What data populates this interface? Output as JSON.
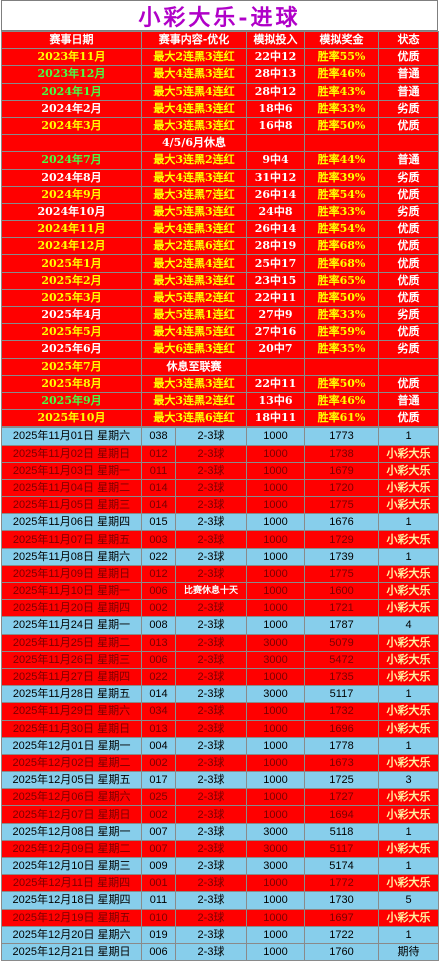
{
  "title": "小彩大乐-进球",
  "header": [
    "赛事日期",
    "赛事内容-优化",
    "模拟投入",
    "模拟奖金",
    "状态"
  ],
  "summary_rows": [
    {
      "date": "2023年11月",
      "content": "最大2连黑3连红",
      "invest": "22中12",
      "prize": "胜率55%",
      "status": "优质",
      "date_color": "yellow"
    },
    {
      "date": "2023年12月",
      "content": "最大4连黑3连红",
      "invest": "28中13",
      "prize": "胜率46%",
      "status": "普通",
      "date_color": "green"
    },
    {
      "date": "2024年1月",
      "content": "最大5连黑4连红",
      "invest": "28中12",
      "prize": "胜率43%",
      "status": "普通",
      "date_color": "green"
    },
    {
      "date": "2024年2月",
      "content": "最大4连黑3连红",
      "invest": "18中6",
      "prize": "胜率33%",
      "status": "劣质",
      "date_color": "white"
    },
    {
      "date": "2024年3月",
      "content": "最大3连黑3连红",
      "invest": "16中8",
      "prize": "胜率50%",
      "status": "优质",
      "date_color": "yellow"
    },
    {
      "date": "",
      "content": "4/5/6月休息",
      "invest": "",
      "prize": "",
      "status": "",
      "date_color": "yellow",
      "note": true
    },
    {
      "date": "2024年7月",
      "content": "最大3连黑2连红",
      "invest": "9中4",
      "prize": "胜率44%",
      "status": "普通",
      "date_color": "green"
    },
    {
      "date": "2024年8月",
      "content": "最大4连黑3连红",
      "invest": "31中12",
      "prize": "胜率39%",
      "status": "劣质",
      "date_color": "white"
    },
    {
      "date": "2024年9月",
      "content": "最大3连黑7连红",
      "invest": "26中14",
      "prize": "胜率54%",
      "status": "优质",
      "date_color": "yellow"
    },
    {
      "date": "2024年10月",
      "content": "最大5连黑3连红",
      "invest": "24中8",
      "prize": "胜率33%",
      "status": "劣质",
      "date_color": "white"
    },
    {
      "date": "2024年11月",
      "content": "最大4连黑3连红",
      "invest": "26中14",
      "prize": "胜率54%",
      "status": "优质",
      "date_color": "yellow"
    },
    {
      "date": "2024年12月",
      "content": "最大2连黑6连红",
      "invest": "28中19",
      "prize": "胜率68%",
      "status": "优质",
      "date_color": "yellow"
    },
    {
      "date": "2025年1月",
      "content": "最大2连黑4连红",
      "invest": "25中17",
      "prize": "胜率68%",
      "status": "优质",
      "date_color": "yellow"
    },
    {
      "date": "2025年2月",
      "content": "最大3连黑3连红",
      "invest": "23中15",
      "prize": "胜率65%",
      "status": "优质",
      "date_color": "yellow"
    },
    {
      "date": "2025年3月",
      "content": "最大5连黑2连红",
      "invest": "22中11",
      "prize": "胜率50%",
      "status": "优质",
      "date_color": "yellow"
    },
    {
      "date": "2025年4月",
      "content": "最大5连黑1连红",
      "invest": "27中9",
      "prize": "胜率33%",
      "status": "劣质",
      "date_color": "white"
    },
    {
      "date": "2025年5月",
      "content": "最大4连黑5连红",
      "invest": "27中16",
      "prize": "胜率59%",
      "status": "优质",
      "date_color": "yellow"
    },
    {
      "date": "2025年6月",
      "content": "最大6连黑3连红",
      "invest": "20中7",
      "prize": "胜率35%",
      "status": "劣质",
      "date_color": "white"
    },
    {
      "date": "2025年7月",
      "content": "休息至联赛",
      "invest": "",
      "prize": "",
      "status": "",
      "date_color": "yellow",
      "note": true
    },
    {
      "date": "2025年8月",
      "content": "最大3连黑3连红",
      "invest": "22中11",
      "prize": "胜率50%",
      "status": "优质",
      "date_color": "yellow"
    },
    {
      "date": "2025年9月",
      "content": "最大3连黑2连红",
      "invest": "13中6",
      "prize": "胜率46%",
      "status": "普通",
      "date_color": "green"
    },
    {
      "date": "2025年10月",
      "content": "最大3连黑6连红",
      "invest": "18中11",
      "prize": "胜率61%",
      "status": "优质",
      "date_color": "yellow"
    }
  ],
  "daily_rows": [
    {
      "date": "2025年11月01日 星期六",
      "num": "038",
      "play": "2-3球",
      "invest": "1000",
      "prize": "1773",
      "status": "1",
      "color": "blue"
    },
    {
      "date": "2025年11月02日 星期日",
      "num": "012",
      "play": "2-3球",
      "invest": "1000",
      "prize": "1738",
      "status": "小彩大乐",
      "color": "red"
    },
    {
      "date": "2025年11月03日 星期一",
      "num": "011",
      "play": "2-3球",
      "invest": "1000",
      "prize": "1679",
      "status": "小彩大乐",
      "color": "red"
    },
    {
      "date": "2025年11月04日 星期二",
      "num": "014",
      "play": "2-3球",
      "invest": "1000",
      "prize": "1720",
      "status": "小彩大乐",
      "color": "red"
    },
    {
      "date": "2025年11月05日 星期三",
      "num": "014",
      "play": "2-3球",
      "invest": "1000",
      "prize": "1775",
      "status": "小彩大乐",
      "color": "red"
    },
    {
      "date": "2025年11月06日 星期四",
      "num": "015",
      "play": "2-3球",
      "invest": "1000",
      "prize": "1676",
      "status": "1",
      "color": "blue"
    },
    {
      "date": "2025年11月07日 星期五",
      "num": "003",
      "play": "2-3球",
      "invest": "1000",
      "prize": "1729",
      "status": "小彩大乐",
      "color": "red"
    },
    {
      "date": "2025年11月08日 星期六",
      "num": "022",
      "play": "2-3球",
      "invest": "1000",
      "prize": "1739",
      "status": "1",
      "color": "blue"
    },
    {
      "date": "2025年11月09日 星期日",
      "num": "012",
      "play": "2-3球",
      "invest": "1000",
      "prize": "1775",
      "status": "小彩大乐",
      "color": "red"
    },
    {
      "date": "2025年11月10日 星期一",
      "num": "006",
      "play": "2-3球",
      "invest": "1000",
      "prize": "1600",
      "status": "小彩大乐",
      "color": "red",
      "memo": "比赛休息十天"
    },
    {
      "date": "2025年11月20日 星期四",
      "num": "002",
      "play": "2-3球",
      "invest": "1000",
      "prize": "1721",
      "status": "小彩大乐",
      "color": "red"
    },
    {
      "date": "2025年11月24日 星期一",
      "num": "008",
      "play": "2-3球",
      "invest": "1000",
      "prize": "1787",
      "status": "4",
      "color": "blue"
    },
    {
      "date": "2025年11月25日 星期二",
      "num": "013",
      "play": "2-3球",
      "invest": "3000",
      "prize": "5079",
      "status": "小彩大乐",
      "color": "red"
    },
    {
      "date": "2025年11月26日 星期三",
      "num": "006",
      "play": "2-3球",
      "invest": "3000",
      "prize": "5472",
      "status": "小彩大乐",
      "color": "red"
    },
    {
      "date": "2025年11月27日 星期四",
      "num": "022",
      "play": "2-3球",
      "invest": "1000",
      "prize": "1735",
      "status": "小彩大乐",
      "color": "red"
    },
    {
      "date": "2025年11月28日 星期五",
      "num": "014",
      "play": "2-3球",
      "invest": "3000",
      "prize": "5117",
      "status": "1",
      "color": "blue"
    },
    {
      "date": "2025年11月29日 星期六",
      "num": "034",
      "play": "2-3球",
      "invest": "1000",
      "prize": "1732",
      "status": "小彩大乐",
      "color": "red"
    },
    {
      "date": "2025年11月30日 星期日",
      "num": "013",
      "play": "2-3球",
      "invest": "1000",
      "prize": "1696",
      "status": "小彩大乐",
      "color": "red"
    },
    {
      "date": "2025年12月01日 星期一",
      "num": "004",
      "play": "2-3球",
      "invest": "1000",
      "prize": "1778",
      "status": "1",
      "color": "blue"
    },
    {
      "date": "2025年12月02日 星期二",
      "num": "002",
      "play": "2-3球",
      "invest": "1000",
      "prize": "1673",
      "status": "小彩大乐",
      "color": "red"
    },
    {
      "date": "2025年12月05日 星期五",
      "num": "017",
      "play": "2-3球",
      "invest": "1000",
      "prize": "1725",
      "status": "3",
      "color": "blue"
    },
    {
      "date": "2025年12月06日 星期六",
      "num": "025",
      "play": "2-3球",
      "invest": "1000",
      "prize": "1727",
      "status": "小彩大乐",
      "color": "red"
    },
    {
      "date": "2025年12月07日 星期日",
      "num": "002",
      "play": "2-3球",
      "invest": "1000",
      "prize": "1694",
      "status": "小彩大乐",
      "color": "red"
    },
    {
      "date": "2025年12月08日 星期一",
      "num": "007",
      "play": "2-3球",
      "invest": "3000",
      "prize": "5118",
      "status": "1",
      "color": "blue"
    },
    {
      "date": "2025年12月09日 星期二",
      "num": "007",
      "play": "2-3球",
      "invest": "3000",
      "prize": "5117",
      "status": "小彩大乐",
      "color": "red"
    },
    {
      "date": "2025年12月10日 星期三",
      "num": "009",
      "play": "2-3球",
      "invest": "3000",
      "prize": "5174",
      "status": "1",
      "color": "blue"
    },
    {
      "date": "2025年12月11日 星期四",
      "num": "001",
      "play": "2-3球",
      "invest": "1000",
      "prize": "1772",
      "status": "小彩大乐",
      "color": "red"
    },
    {
      "date": "2025年12月18日 星期四",
      "num": "011",
      "play": "2-3球",
      "invest": "1000",
      "prize": "1730",
      "status": "5",
      "color": "blue"
    },
    {
      "date": "2025年12月19日 星期五",
      "num": "010",
      "play": "2-3球",
      "invest": "1000",
      "prize": "1697",
      "status": "小彩大乐",
      "color": "red"
    },
    {
      "date": "2025年12月20日 星期六",
      "num": "019",
      "play": "2-3球",
      "invest": "1000",
      "prize": "1722",
      "status": "1",
      "color": "blue"
    },
    {
      "date": "2025年12月21日 星期日",
      "num": "006",
      "play": "2-3球",
      "invest": "1000",
      "prize": "1760",
      "status": "期待",
      "color": "blue"
    }
  ]
}
